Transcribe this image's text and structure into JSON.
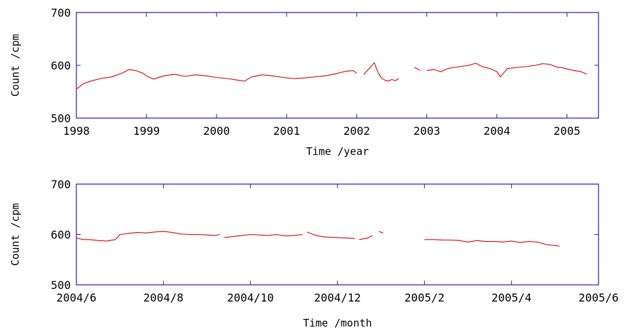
{
  "chart_data": [
    {
      "type": "line",
      "xlabel": "Time /year",
      "ylabel": "Count /cpm",
      "xlim": [
        1998.0,
        2005.45
      ],
      "ylim": [
        500,
        700
      ],
      "x_ticks": [
        1998,
        1999,
        2000,
        2001,
        2002,
        2003,
        2004,
        2005
      ],
      "x_tick_labels": [
        "1998",
        "1999",
        "2000",
        "2001",
        "2002",
        "2003",
        "2004",
        "2005"
      ],
      "y_ticks": [
        500,
        600,
        700
      ],
      "y_tick_labels": [
        "500",
        "600",
        "700"
      ],
      "grid": false,
      "color": "#dd0000",
      "frame_color": "#1a1acc",
      "series": [
        {
          "x": [
            1998.0,
            1998.05,
            1998.1,
            1998.2,
            1998.35,
            1998.5,
            1998.65,
            1998.75,
            1998.85,
            1998.95,
            1999.0,
            1999.1,
            1999.25,
            1999.4,
            1999.55,
            1999.7,
            1999.85,
            2000.0,
            2000.15,
            2000.3,
            2000.4,
            2000.5,
            2000.65,
            2000.8,
            2000.95,
            2001.1,
            2001.25,
            2001.4,
            2001.55,
            2001.7,
            2001.85,
            2001.95,
            2002.0
          ],
          "y": [
            555,
            560,
            565,
            570,
            575,
            578,
            585,
            592,
            590,
            585,
            580,
            574,
            580,
            583,
            579,
            582,
            580,
            577,
            575,
            572,
            570,
            578,
            582,
            580,
            577,
            575,
            576,
            578,
            580,
            584,
            589,
            590,
            585
          ]
        },
        {
          "x": [
            2002.1,
            2002.15,
            2002.2,
            2002.25,
            2002.3,
            2002.35,
            2002.4,
            2002.45,
            2002.5,
            2002.55,
            2002.6
          ],
          "y": [
            583,
            590,
            597,
            605,
            588,
            576,
            572,
            570,
            573,
            571,
            575
          ]
        },
        {
          "x": [
            2002.82,
            2002.87,
            2002.9
          ],
          "y": [
            596,
            593,
            590
          ]
        },
        {
          "x": [
            2003.0,
            2003.1,
            2003.2,
            2003.3,
            2003.4,
            2003.5,
            2003.6,
            2003.7,
            2003.8,
            2003.9,
            2004.0,
            2004.05,
            2004.15,
            2004.3,
            2004.45,
            2004.55,
            2004.65,
            2004.75,
            2004.85,
            2004.95,
            2005.0,
            2005.1,
            2005.2,
            2005.28
          ],
          "y": [
            590,
            592,
            588,
            594,
            596,
            598,
            600,
            604,
            597,
            594,
            588,
            578,
            594,
            596,
            598,
            600,
            603,
            602,
            597,
            595,
            593,
            590,
            588,
            583
          ]
        }
      ]
    },
    {
      "type": "line",
      "xlabel": "Time /month",
      "ylabel": "Count /cpm",
      "xlim": [
        0,
        12
      ],
      "ylim": [
        500,
        700
      ],
      "x_ticks": [
        0,
        2,
        4,
        6,
        8,
        10,
        12
      ],
      "x_tick_labels": [
        "2004/6",
        "2004/8",
        "2004/10",
        "2004/12",
        "2005/2",
        "2005/4",
        "2005/6"
      ],
      "y_ticks": [
        500,
        600,
        700
      ],
      "y_tick_labels": [
        "500",
        "600",
        "700"
      ],
      "grid": false,
      "color": "#dd0000",
      "frame_color": "#1a1acc",
      "series": [
        {
          "x": [
            0.0,
            0.15,
            0.3,
            0.5,
            0.7,
            0.9,
            1.0,
            1.2,
            1.4,
            1.6,
            1.8,
            2.0,
            2.2,
            2.4,
            2.6,
            2.8,
            3.0,
            3.2,
            3.3
          ],
          "y": [
            593,
            590,
            590,
            588,
            587,
            590,
            600,
            602,
            604,
            603,
            605,
            606,
            604,
            601,
            600,
            600,
            599,
            598,
            600
          ]
        },
        {
          "x": [
            3.4,
            3.6,
            3.8,
            4.0,
            4.2,
            4.4,
            4.6,
            4.8,
            5.0,
            5.2
          ],
          "y": [
            594,
            596,
            598,
            600,
            599,
            598,
            600,
            597,
            598,
            600
          ]
        },
        {
          "x": [
            5.3,
            5.5,
            5.7,
            6.0,
            6.2,
            6.4
          ],
          "y": [
            605,
            598,
            595,
            594,
            593,
            592
          ]
        },
        {
          "x": [
            6.5,
            6.7,
            6.8
          ],
          "y": [
            590,
            593,
            598
          ]
        },
        {
          "x": [
            6.95,
            7.05
          ],
          "y": [
            606,
            603
          ]
        },
        {
          "x": [
            8.0,
            8.2,
            8.4,
            8.6,
            8.8,
            9.0,
            9.2,
            9.4,
            9.6,
            9.8,
            10.0,
            10.2,
            10.4,
            10.6,
            10.8,
            11.0,
            11.1
          ],
          "y": [
            590,
            590,
            589,
            589,
            588,
            585,
            588,
            586,
            586,
            585,
            587,
            584,
            586,
            585,
            580,
            578,
            577
          ]
        }
      ]
    }
  ]
}
